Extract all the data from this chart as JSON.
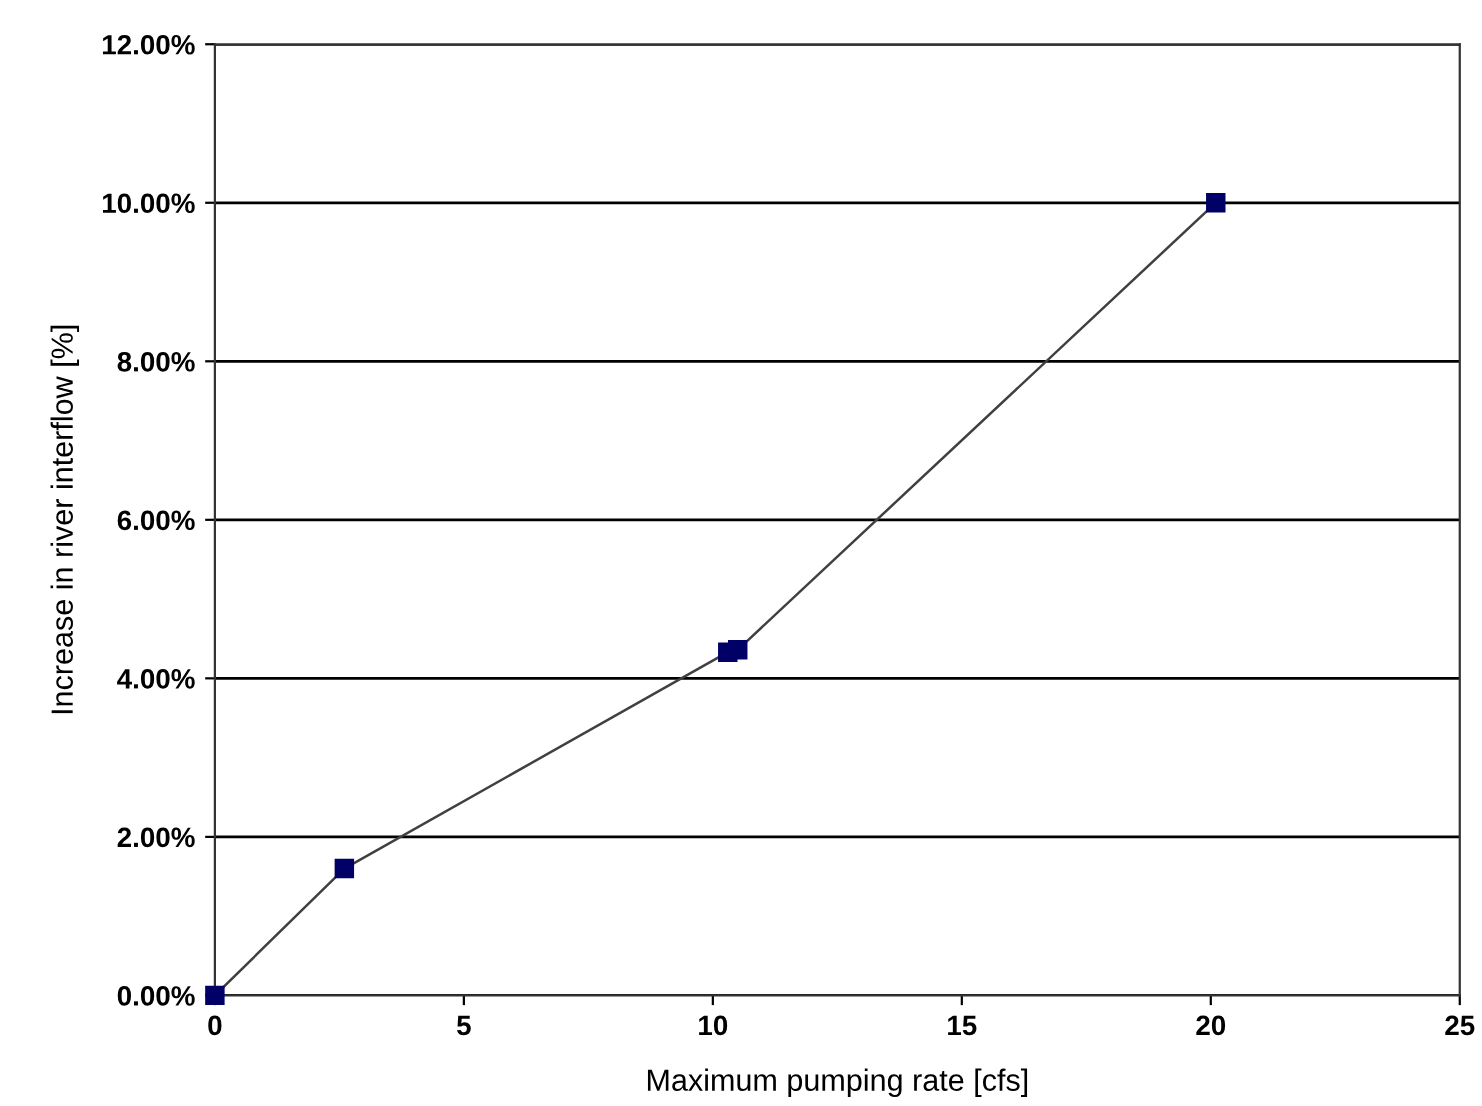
{
  "chart_data": {
    "type": "line",
    "xlabel": "Maximum pumping rate [cfs]",
    "ylabel": "Increase in river interflow [%]",
    "x": [
      0,
      2.6,
      10.3,
      10.5,
      20.1
    ],
    "series": [
      {
        "color": "#000066",
        "values": [
          0,
          1.6,
          4.33,
          4.36,
          10.0
        ]
      }
    ],
    "marker": "square",
    "line_style": "solid",
    "grid": "y",
    "xlim": [
      0,
      25
    ],
    "xticks": [
      0,
      5,
      10,
      15,
      20,
      25
    ],
    "ylim": [
      0,
      12
    ],
    "yticks": [
      {
        "value": 0,
        "label": "0.00%"
      },
      {
        "value": 2,
        "label": "2.00%"
      },
      {
        "value": 4,
        "label": "4.00%"
      },
      {
        "value": 6,
        "label": "6.00%"
      },
      {
        "value": 8,
        "label": "8.00%"
      },
      {
        "value": 10,
        "label": "10.00%"
      },
      {
        "value": 12,
        "label": "12.00%"
      }
    ]
  }
}
